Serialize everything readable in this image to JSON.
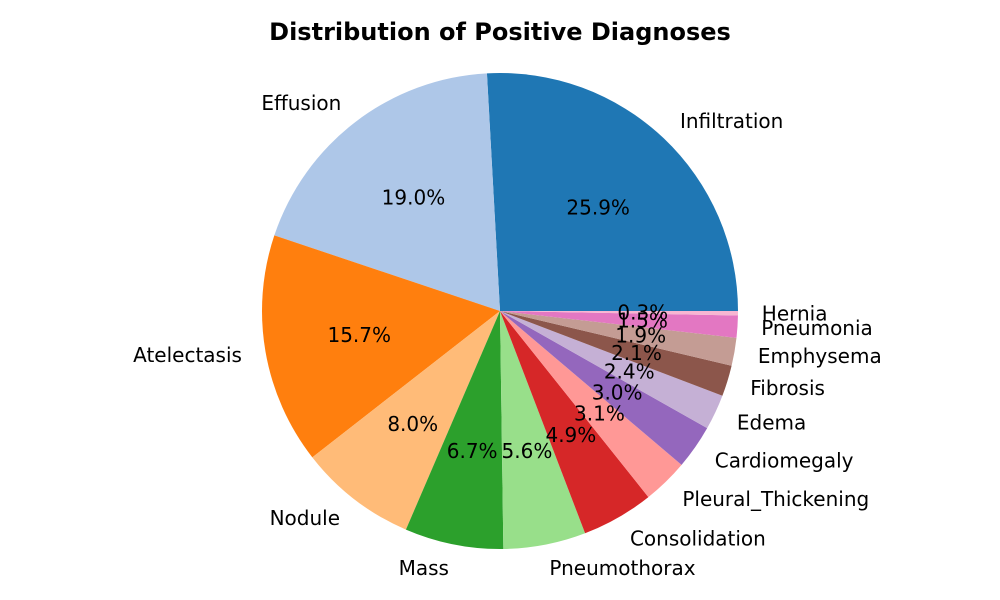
{
  "chart_data": {
    "type": "pie",
    "title": "Distribution of Positive Diagnoses",
    "start_angle_deg": 0,
    "direction": "counterclockwise",
    "slices": [
      {
        "label": "Infiltration",
        "value": 25.9,
        "pct_label": "25.9%",
        "color": "#1f77b4"
      },
      {
        "label": "Effusion",
        "value": 19.0,
        "pct_label": "19.0%",
        "color": "#aec7e8"
      },
      {
        "label": "Atelectasis",
        "value": 15.7,
        "pct_label": "15.7%",
        "color": "#ff7f0e"
      },
      {
        "label": "Nodule",
        "value": 8.0,
        "pct_label": "8.0%",
        "color": "#ffbb78"
      },
      {
        "label": "Mass",
        "value": 6.7,
        "pct_label": "6.7%",
        "color": "#2ca02c"
      },
      {
        "label": "Pneumothorax",
        "value": 5.6,
        "pct_label": "5.6%",
        "color": "#98df8a"
      },
      {
        "label": "Consolidation",
        "value": 4.9,
        "pct_label": "4.9%",
        "color": "#d62728"
      },
      {
        "label": "Pleural_Thickening",
        "value": 3.1,
        "pct_label": "3.1%",
        "color": "#ff9896"
      },
      {
        "label": "Cardiomegaly",
        "value": 3.0,
        "pct_label": "3.0%",
        "color": "#9467bd"
      },
      {
        "label": "Edema",
        "value": 2.4,
        "pct_label": "2.4%",
        "color": "#c5b0d5"
      },
      {
        "label": "Fibrosis",
        "value": 2.1,
        "pct_label": "2.1%",
        "color": "#8c564b"
      },
      {
        "label": "Emphysema",
        "value": 1.9,
        "pct_label": "1.9%",
        "color": "#c49c94"
      },
      {
        "label": "Pneumonia",
        "value": 1.5,
        "pct_label": "1.5%",
        "color": "#e377c2"
      },
      {
        "label": "Hernia",
        "value": 0.3,
        "pct_label": "0.3%",
        "color": "#f7b6d2"
      }
    ]
  }
}
